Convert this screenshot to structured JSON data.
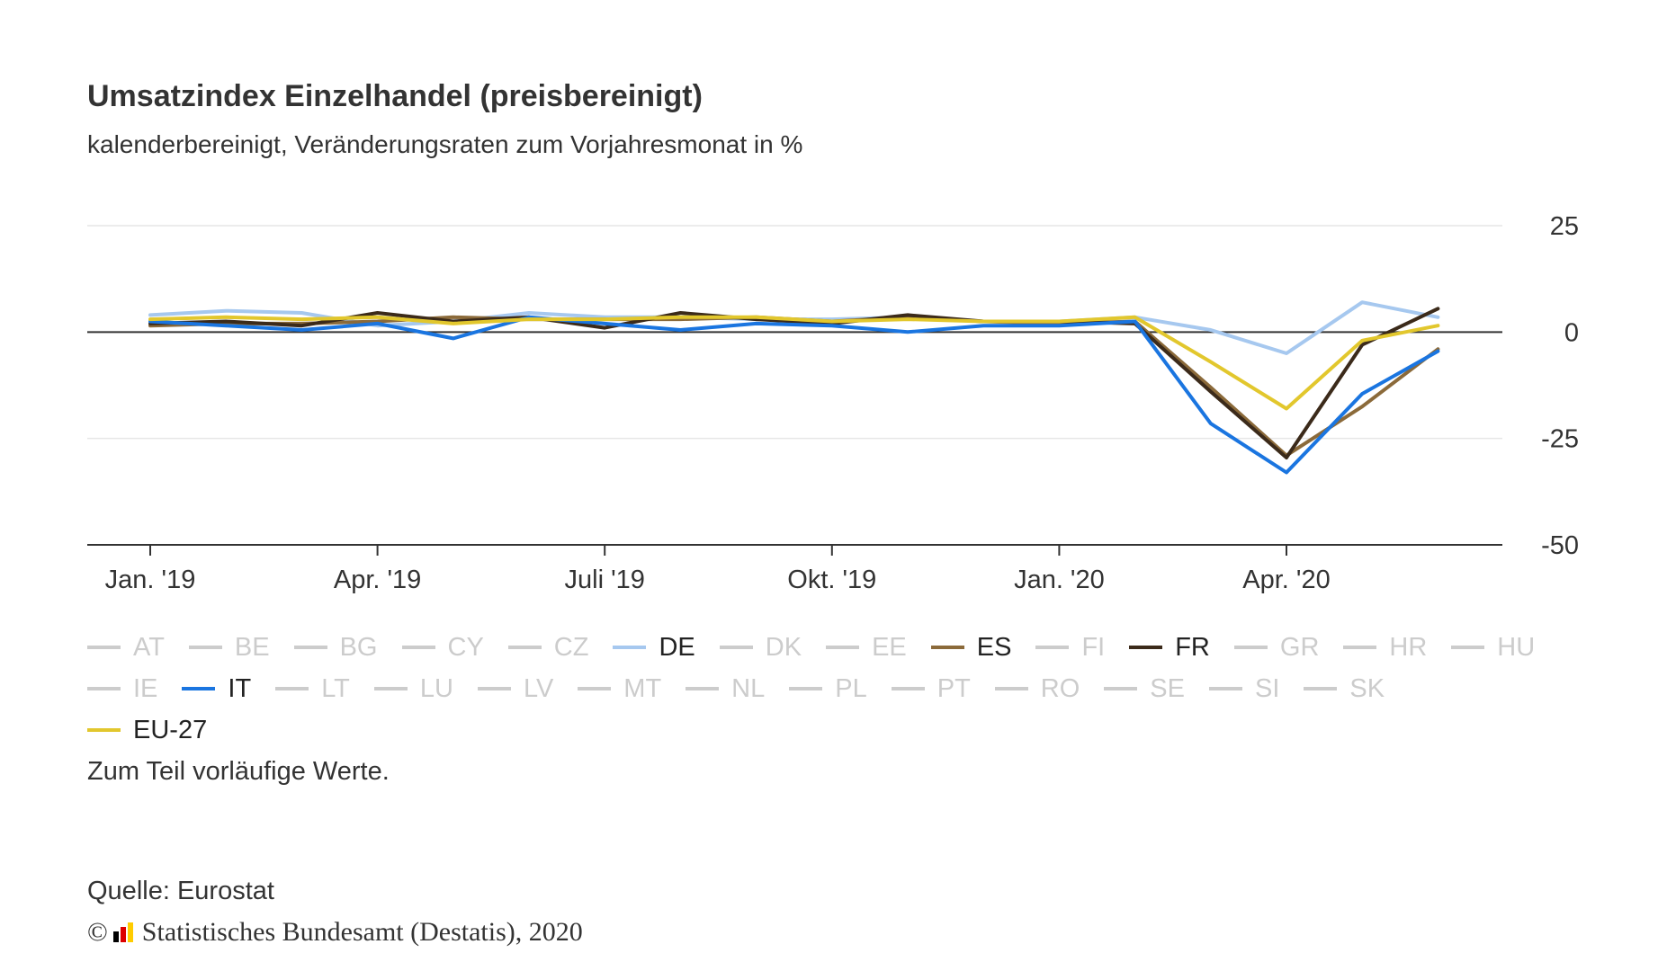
{
  "title": "Umsatzindex Einzelhandel (preisbereinigt)",
  "subtitle": "kalenderbereinigt, Veränderungsraten zum Vorjahresmonat in %",
  "note": "Zum Teil vorläufige Werte.",
  "source": "Quelle: Eurostat",
  "copyright": {
    "symbol": "©",
    "text": "Statistisches Bundesamt (Destatis), 2020",
    "logo_colors": [
      "#000000",
      "#dd0000",
      "#ffcc00"
    ]
  },
  "legend": [
    {
      "label": "AT",
      "active": false
    },
    {
      "label": "BE",
      "active": false
    },
    {
      "label": "BG",
      "active": false
    },
    {
      "label": "CY",
      "active": false
    },
    {
      "label": "CZ",
      "active": false
    },
    {
      "label": "DE",
      "active": true,
      "color": "#a6c8ef"
    },
    {
      "label": "DK",
      "active": false
    },
    {
      "label": "EE",
      "active": false
    },
    {
      "label": "ES",
      "active": true,
      "color": "#8b6a3a"
    },
    {
      "label": "FI",
      "active": false
    },
    {
      "label": "FR",
      "active": true,
      "color": "#3b2a1a"
    },
    {
      "label": "GR",
      "active": false
    },
    {
      "label": "HR",
      "active": false
    },
    {
      "label": "HU",
      "active": false
    },
    {
      "label": "IE",
      "active": false
    },
    {
      "label": "IT",
      "active": true,
      "color": "#1a75e0"
    },
    {
      "label": "LT",
      "active": false
    },
    {
      "label": "LU",
      "active": false
    },
    {
      "label": "LV",
      "active": false
    },
    {
      "label": "MT",
      "active": false
    },
    {
      "label": "NL",
      "active": false
    },
    {
      "label": "PL",
      "active": false
    },
    {
      "label": "PT",
      "active": false
    },
    {
      "label": "RO",
      "active": false
    },
    {
      "label": "SE",
      "active": false
    },
    {
      "label": "SI",
      "active": false
    },
    {
      "label": "SK",
      "active": false
    },
    {
      "label": "EU-27",
      "active": true,
      "color": "#e2c72d"
    }
  ],
  "colors": {
    "inactive": "#cccccc",
    "grid": "#e6e6e6",
    "axis": "#333333"
  },
  "chart_data": {
    "type": "line",
    "title": "Umsatzindex Einzelhandel (preisbereinigt)",
    "subtitle": "kalenderbereinigt, Veränderungsraten zum Vorjahresmonat in %",
    "x": [
      "2019-01",
      "2019-02",
      "2019-03",
      "2019-04",
      "2019-05",
      "2019-06",
      "2019-07",
      "2019-08",
      "2019-09",
      "2019-10",
      "2019-11",
      "2019-12",
      "2020-01",
      "2020-02",
      "2020-03",
      "2020-04",
      "2020-05",
      "2020-06"
    ],
    "x_tick_labels": [
      "Jan. '19",
      "Apr. '19",
      "Juli '19",
      "Okt. '19",
      "Jan. '20",
      "Apr. '20"
    ],
    "x_tick_months": [
      "2019-01",
      "2019-04",
      "2019-07",
      "2019-10",
      "2020-01",
      "2020-04"
    ],
    "ylim": [
      -50,
      25
    ],
    "y_ticks": [
      25,
      0,
      -25,
      -50
    ],
    "grid": true,
    "y_axis_position": "right",
    "series": [
      {
        "name": "DE",
        "color": "#a6c8ef",
        "values": [
          4.0,
          5.0,
          4.5,
          1.5,
          2.5,
          4.5,
          3.5,
          3.5,
          3.0,
          3.0,
          3.5,
          2.5,
          2.5,
          3.5,
          0.5,
          -5.0,
          7.0,
          3.5
        ]
      },
      {
        "name": "ES",
        "color": "#8b6a3a",
        "values": [
          1.5,
          2.0,
          2.0,
          2.5,
          3.5,
          3.0,
          3.0,
          3.0,
          3.5,
          2.5,
          3.5,
          2.5,
          2.0,
          2.5,
          -13.0,
          -29.0,
          -17.5,
          -4.0
        ]
      },
      {
        "name": "FR",
        "color": "#3b2a1a",
        "values": [
          2.0,
          2.5,
          1.5,
          4.5,
          2.5,
          3.5,
          1.0,
          4.5,
          3.0,
          2.0,
          4.0,
          2.5,
          2.5,
          2.0,
          -14.0,
          -29.5,
          -3.0,
          5.5
        ]
      },
      {
        "name": "IT",
        "color": "#1a75e0",
        "values": [
          2.5,
          1.5,
          0.5,
          2.0,
          -1.5,
          3.5,
          2.0,
          0.5,
          2.0,
          1.5,
          0.0,
          1.5,
          1.5,
          2.5,
          -21.5,
          -33.0,
          -14.5,
          -4.5
        ]
      },
      {
        "name": "EU-27",
        "color": "#e2c72d",
        "values": [
          3.0,
          3.5,
          3.0,
          3.5,
          2.0,
          3.0,
          3.0,
          3.5,
          3.5,
          2.5,
          3.0,
          2.5,
          2.5,
          3.5,
          -7.0,
          -18.0,
          -2.0,
          1.5
        ]
      }
    ]
  }
}
